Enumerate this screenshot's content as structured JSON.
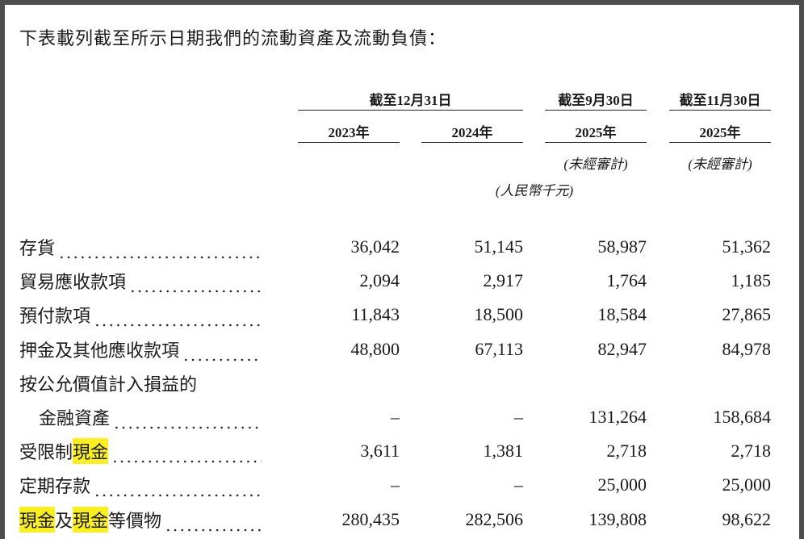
{
  "title": "下表載列截至所示日期我們的流動資產及流動負債：",
  "header": {
    "groups": [
      {
        "text": "截至12月31日",
        "columns": [
          0,
          1
        ]
      },
      {
        "text": "截至9月30日",
        "columns": [
          2
        ]
      },
      {
        "text": "截至11月30日",
        "columns": [
          3
        ]
      }
    ],
    "years": [
      "2023年",
      "2024年",
      "2025年",
      "2025年"
    ],
    "notes": [
      {
        "text": "(未經審計)",
        "column": 2
      },
      {
        "text": "(未經審計)",
        "column": 3
      }
    ],
    "unit": "(人民幣千元)"
  },
  "table": {
    "rows": [
      {
        "label": [
          {
            "text": "存貨"
          }
        ],
        "values": [
          "36,042",
          "51,145",
          "58,987",
          "51,362"
        ]
      },
      {
        "label": [
          {
            "text": "貿易應收款項"
          }
        ],
        "values": [
          "2,094",
          "2,917",
          "1,764",
          "1,185"
        ]
      },
      {
        "label": [
          {
            "text": "預付款項"
          }
        ],
        "values": [
          "11,843",
          "18,500",
          "18,584",
          "27,865"
        ]
      },
      {
        "label": [
          {
            "text": "押金及其他應收款項"
          }
        ],
        "values": [
          "48,800",
          "67,113",
          "82,947",
          "84,978"
        ]
      },
      {
        "label": [
          {
            "text": "按公允價值計入損益的"
          }
        ]
      },
      {
        "label": [
          {
            "text": "金融資產"
          }
        ],
        "indent": true,
        "values": [
          "–",
          "–",
          "131,264",
          "158,684"
        ]
      },
      {
        "label": [
          {
            "text": "受限制"
          },
          {
            "text": "現金",
            "highlight": true
          }
        ],
        "values": [
          "3,611",
          "1,381",
          "2,718",
          "2,718"
        ]
      },
      {
        "label": [
          {
            "text": "定期存款"
          }
        ],
        "values": [
          "–",
          "–",
          "25,000",
          "25,000"
        ]
      },
      {
        "label": [
          {
            "text": "現金",
            "highlight": true
          },
          {
            "text": "及"
          },
          {
            "text": "現金",
            "highlight": true
          },
          {
            "text": "等價物"
          }
        ],
        "values": [
          "280,435",
          "282,506",
          "139,808",
          "98,622"
        ]
      }
    ]
  }
}
